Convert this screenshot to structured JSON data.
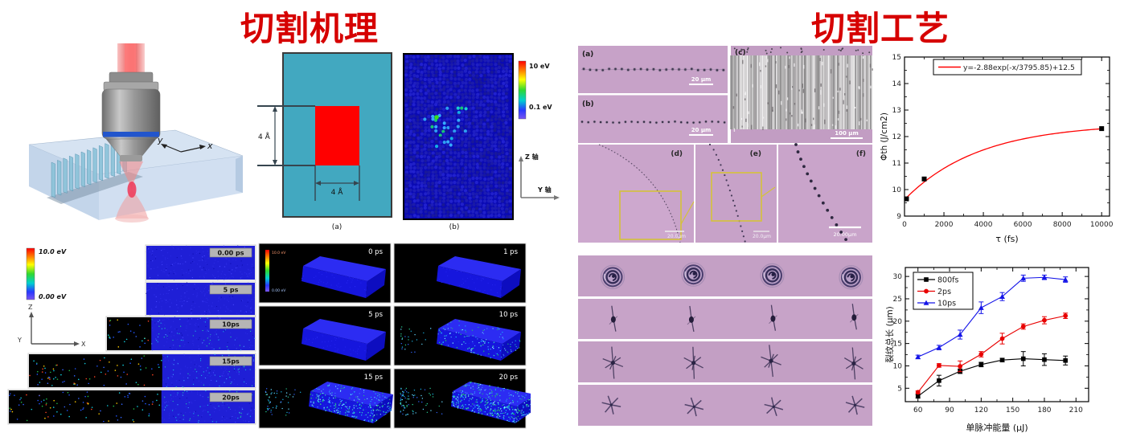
{
  "titles": {
    "left": "切割机理",
    "right": "切割工艺"
  },
  "colors": {
    "title_red": "#d60000",
    "diagram_cyan": "#42a8c0",
    "diagram_red": "#ff0000",
    "sim_blue": "#1f1fd6",
    "micro_mauve": "#c7a2c8",
    "chart_fit_red": "#ff0000",
    "series_black": "#000000",
    "series_red": "#e80000",
    "series_blue": "#1414e8"
  },
  "mechanism": {
    "fig3d": {
      "axis_y": "y",
      "axis_x": "x"
    },
    "diagram_a": {
      "caption": "(a)",
      "height_label": "4 Å",
      "width_label": "4 Å"
    },
    "panel_b": {
      "caption": "(b)",
      "cbar_max": "10 eV",
      "cbar_min": "0.1 eV",
      "axis_vertical": "Z 轴",
      "axis_horizontal": "Y 轴"
    },
    "sim2d": {
      "cbar_max": "10.0 eV",
      "cbar_min": "0.00 eV",
      "axis_up": "Z",
      "axis_right": "X",
      "axis_origin": "Y",
      "frames": [
        "0.00 ps",
        "5 ps",
        "10ps",
        "15ps",
        "20ps"
      ]
    },
    "sim3d": {
      "cbar_max": "10.0 eV",
      "cbar_min": "0.00 eV",
      "frames": [
        "0 ps",
        "1 ps",
        "5 ps",
        "10 ps",
        "15 ps",
        "20 ps"
      ]
    }
  },
  "process": {
    "micro": {
      "a": {
        "label": "(a)",
        "scale": "20 μm"
      },
      "b": {
        "label": "(b)",
        "scale": "20 μm"
      },
      "c": {
        "label": "(c)",
        "scale": "100 μm"
      },
      "d": {
        "label": "(d)",
        "scale": "20.0μm"
      },
      "e": {
        "label": "(e)",
        "scale": "20.0μm"
      },
      "f": {
        "label": "(f)",
        "scale": "20.00μm"
      }
    }
  },
  "chart_data": [
    {
      "type": "scatter",
      "title": "",
      "xlabel": "τ (fs)",
      "ylabel": "Φth (J/cm2)",
      "xlim": [
        0,
        10400
      ],
      "ylim": [
        9,
        15
      ],
      "xticks": [
        0,
        2000,
        4000,
        6000,
        8000,
        10000
      ],
      "xminor": [
        1000,
        3000,
        5000,
        7000,
        9000
      ],
      "yticks": [
        9,
        10,
        11,
        12,
        13,
        14,
        15
      ],
      "yminor": [
        9.5,
        10.5,
        11.5,
        12.5,
        13.5,
        14.5
      ],
      "legend_label": "y=-2.88exp(-x/3795.85)+12.5",
      "legend_position": "top-center",
      "grid": false,
      "points": [
        [
          100,
          9.65
        ],
        [
          1000,
          10.4
        ],
        [
          10000,
          12.3
        ]
      ],
      "fit": {
        "a": -2.88,
        "tau": 3795.85,
        "c": 12.5
      },
      "curve_color": "#ff0000",
      "point_color": "#000000"
    },
    {
      "type": "line",
      "title": "",
      "xlabel": "单脉冲能量 (μJ)",
      "ylabel": "裂纹总长 (μm)",
      "xlim": [
        48,
        222
      ],
      "ylim": [
        2,
        32
      ],
      "xticks": [
        60,
        90,
        120,
        150,
        180,
        210
      ],
      "xminor": [
        75,
        105,
        135,
        165,
        195
      ],
      "yticks": [
        5,
        10,
        15,
        20,
        25,
        30
      ],
      "yminor": [
        7.5,
        12.5,
        17.5,
        22.5,
        27.5
      ],
      "legend_position": "top-left",
      "grid": false,
      "x": [
        60,
        80,
        100,
        120,
        140,
        160,
        180,
        200
      ],
      "series": [
        {
          "name": "800fs",
          "color": "#000000",
          "marker": "square",
          "values": [
            3.2,
            6.7,
            8.8,
            10.3,
            11.3,
            11.6,
            11.4,
            11.2
          ],
          "err": [
            0.4,
            1.2,
            0.5,
            0.5,
            0.4,
            1.6,
            1.3,
            1.0
          ]
        },
        {
          "name": "2ps",
          "color": "#e80000",
          "marker": "circle",
          "values": [
            4.1,
            10.1,
            9.9,
            12.6,
            16.1,
            18.8,
            20.2,
            21.2
          ],
          "err": [
            0.3,
            0.4,
            1.2,
            0.6,
            1.2,
            0.6,
            0.8,
            0.6
          ]
        },
        {
          "name": "10ps",
          "color": "#1414e8",
          "marker": "triangle",
          "values": [
            12.0,
            14.1,
            17.0,
            23.0,
            25.5,
            29.6,
            29.8,
            29.3
          ],
          "err": [
            0.4,
            0.5,
            1.0,
            1.3,
            0.9,
            0.7,
            0.5,
            0.6
          ]
        }
      ]
    }
  ]
}
